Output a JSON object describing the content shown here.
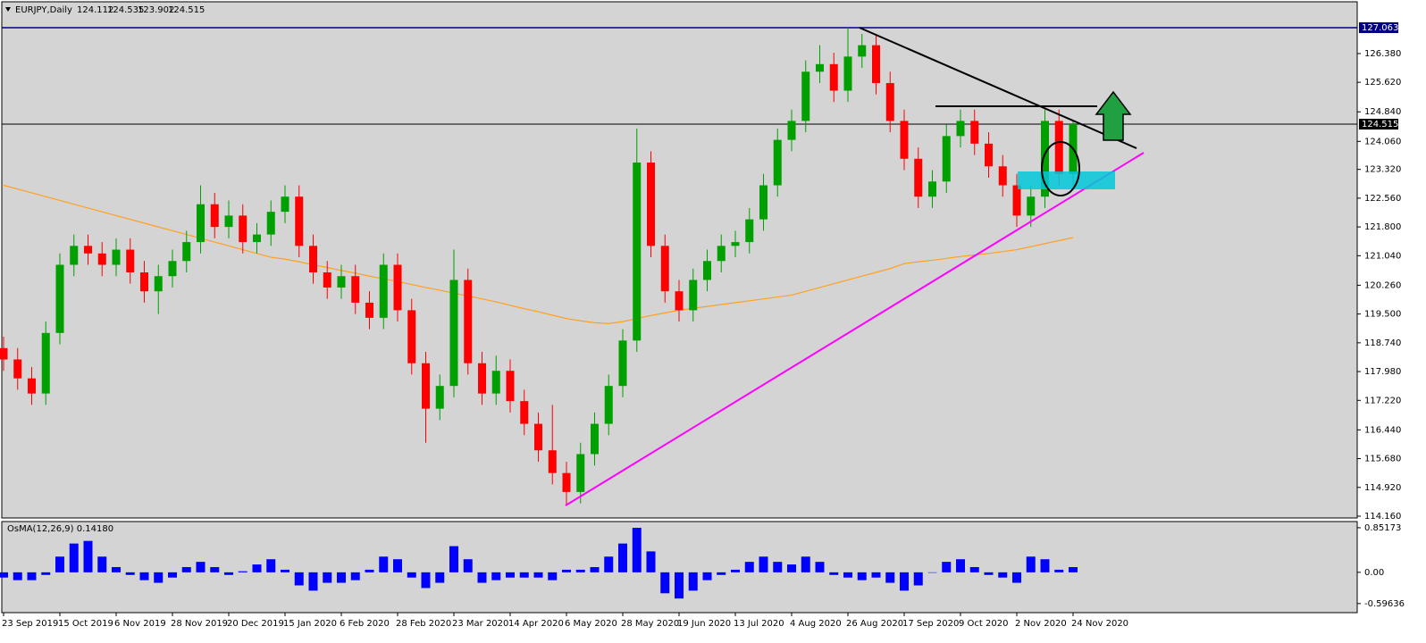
{
  "chart_data": {
    "type": "candlestick",
    "title": "EURJPY,Daily",
    "header_values": [
      124.112,
      124.535,
      123.902,
      124.515
    ],
    "categories": [
      "23 Sep 2019",
      null,
      null,
      null,
      "15 Oct 2019",
      null,
      null,
      null,
      "6 Nov 2019",
      null,
      null,
      null,
      "28 Nov 2019",
      null,
      null,
      null,
      "20 Dec 2019",
      null,
      null,
      null,
      "15 Jan 2020",
      null,
      null,
      null,
      "6 Feb 2020",
      null,
      null,
      null,
      "28 Feb 2020",
      null,
      null,
      null,
      "23 Mar 2020",
      null,
      null,
      null,
      "14 Apr 2020",
      null,
      null,
      null,
      "6 May 2020",
      null,
      null,
      null,
      "28 May 2020",
      null,
      null,
      null,
      "19 Jun 2020",
      null,
      null,
      null,
      "13 Jul 2020",
      null,
      null,
      null,
      "4 Aug 2020",
      null,
      null,
      null,
      "26 Aug 2020",
      null,
      null,
      null,
      "17 Sep 2020",
      null,
      null,
      null,
      "9 Oct 2020",
      null,
      null,
      null,
      "2 Nov 2020",
      null,
      null,
      null,
      "24 Nov 2020"
    ],
    "open": [
      118.6,
      118.3,
      117.8,
      117.4,
      119.0,
      120.8,
      121.3,
      121.1,
      120.8,
      121.2,
      120.6,
      120.1,
      120.5,
      120.9,
      121.4,
      122.4,
      121.8,
      122.1,
      121.4,
      121.6,
      122.2,
      122.6,
      121.3,
      120.6,
      120.2,
      120.5,
      119.8,
      119.4,
      120.8,
      119.6,
      118.2,
      117.0,
      117.6,
      120.4,
      118.2,
      117.4,
      118.0,
      117.2,
      116.6,
      115.9,
      115.3,
      114.8,
      115.8,
      116.6,
      117.6,
      118.8,
      123.5,
      121.3,
      120.1,
      119.6,
      120.4,
      120.9,
      121.3,
      121.4,
      122.0,
      122.9,
      124.1,
      124.6,
      125.9,
      126.1,
      125.4,
      126.3,
      126.6,
      125.6,
      124.6,
      123.6,
      122.6,
      123.0,
      124.2,
      124.6,
      124.0,
      123.4,
      122.9,
      122.1,
      122.6,
      124.6,
      123.2
    ],
    "high": [
      118.9,
      118.6,
      118.1,
      119.3,
      121.1,
      121.6,
      121.6,
      121.4,
      121.5,
      121.5,
      120.9,
      120.8,
      121.2,
      121.7,
      122.9,
      122.7,
      122.5,
      122.4,
      121.9,
      122.5,
      122.9,
      122.9,
      121.6,
      120.9,
      120.8,
      120.8,
      120.1,
      121.1,
      121.1,
      119.9,
      118.5,
      117.9,
      121.2,
      120.7,
      118.5,
      118.4,
      118.3,
      117.5,
      116.9,
      117.1,
      115.6,
      116.1,
      116.9,
      117.9,
      119.1,
      124.4,
      123.8,
      121.6,
      120.4,
      120.7,
      121.2,
      121.6,
      121.7,
      122.3,
      123.2,
      124.4,
      124.9,
      126.2,
      126.6,
      126.4,
      127.063,
      126.9,
      126.9,
      125.9,
      124.9,
      123.9,
      123.3,
      124.5,
      124.9,
      124.9,
      124.3,
      123.7,
      123.2,
      122.9,
      124.9,
      124.9,
      124.6
    ],
    "low": [
      118.0,
      117.5,
      117.1,
      117.1,
      118.7,
      120.5,
      120.8,
      120.5,
      120.5,
      120.3,
      119.8,
      119.5,
      120.2,
      120.6,
      121.1,
      121.5,
      121.5,
      121.1,
      121.1,
      121.3,
      121.9,
      121.0,
      120.3,
      119.9,
      119.9,
      119.5,
      119.1,
      119.1,
      119.3,
      117.9,
      116.1,
      116.7,
      117.3,
      117.9,
      117.1,
      117.1,
      116.9,
      116.3,
      115.6,
      115.0,
      114.43,
      114.5,
      115.5,
      116.3,
      117.3,
      118.5,
      121.0,
      119.8,
      119.3,
      119.3,
      120.1,
      120.6,
      121.0,
      121.1,
      121.7,
      122.6,
      123.8,
      124.3,
      125.6,
      125.1,
      125.1,
      126.0,
      125.3,
      124.3,
      123.3,
      122.3,
      122.3,
      122.7,
      123.9,
      123.7,
      123.1,
      122.6,
      121.8,
      121.8,
      122.3,
      122.9,
      122.9
    ],
    "close": [
      118.3,
      117.8,
      117.4,
      119.0,
      120.8,
      121.3,
      121.1,
      120.8,
      121.2,
      120.6,
      120.1,
      120.5,
      120.9,
      121.4,
      122.4,
      121.8,
      122.1,
      121.4,
      121.6,
      122.2,
      122.6,
      121.3,
      120.6,
      120.2,
      120.5,
      119.8,
      119.4,
      120.8,
      119.6,
      118.2,
      117.0,
      117.6,
      120.4,
      118.2,
      117.4,
      118.0,
      117.2,
      116.6,
      115.9,
      115.3,
      114.8,
      115.8,
      116.6,
      117.6,
      118.8,
      123.5,
      121.3,
      120.1,
      119.6,
      120.4,
      120.9,
      121.3,
      121.4,
      122.0,
      122.9,
      124.1,
      124.6,
      125.9,
      126.1,
      125.4,
      126.3,
      126.6,
      125.6,
      124.6,
      123.6,
      122.6,
      123.0,
      124.2,
      124.6,
      124.0,
      123.4,
      122.9,
      122.1,
      122.6,
      124.6,
      123.2,
      124.515
    ],
    "up_color": "#00a000",
    "down_color": "#ff0000",
    "moving_average": {
      "color": "#ffa020",
      "values": [
        122.9,
        122.8,
        122.7,
        122.6,
        122.5,
        122.4,
        122.3,
        122.2,
        122.1,
        122.0,
        121.9,
        121.8,
        121.7,
        121.6,
        121.5,
        121.4,
        121.3,
        121.2,
        121.1,
        121.0,
        120.95,
        120.88,
        120.8,
        120.73,
        120.65,
        120.58,
        120.5,
        120.43,
        120.36,
        120.28,
        120.2,
        120.13,
        120.05,
        119.98,
        119.9,
        119.82,
        119.73,
        119.64,
        119.56,
        119.47,
        119.38,
        119.32,
        119.27,
        119.25,
        119.3,
        119.38,
        119.46,
        119.53,
        119.6,
        119.65,
        119.7,
        119.75,
        119.8,
        119.85,
        119.9,
        119.95,
        120.0,
        120.1,
        120.2,
        120.3,
        120.4,
        120.5,
        120.6,
        120.7,
        120.83,
        120.88,
        120.92,
        120.97,
        121.02,
        121.06,
        121.1,
        121.15,
        121.2,
        121.28,
        121.36,
        121.44,
        121.52
      ]
    },
    "price_lines": [
      127.063,
      124.515
    ],
    "ylim": [
      114.113,
      127.747
    ],
    "yticks": [
      {
        "value": 126.38,
        "label": "126.380"
      },
      {
        "value": 125.62,
        "label": "125.620"
      },
      {
        "value": 124.84,
        "label": "124.840"
      },
      {
        "value": 124.06,
        "label": "124.060"
      },
      {
        "value": 123.32,
        "label": "123.320"
      },
      {
        "value": 122.56,
        "label": "122.560"
      },
      {
        "value": 121.8,
        "label": "121.800"
      },
      {
        "value": 121.04,
        "label": "121.040"
      },
      {
        "value": 120.26,
        "label": "120.260"
      },
      {
        "value": 119.5,
        "label": "119.500"
      },
      {
        "value": 118.74,
        "label": "118.740"
      },
      {
        "value": 117.98,
        "label": "117.980"
      },
      {
        "value": 117.22,
        "label": "117.220"
      },
      {
        "value": 116.44,
        "label": "116.440"
      },
      {
        "value": 115.68,
        "label": "115.680"
      },
      {
        "value": 114.92,
        "label": "114.920"
      },
      {
        "value": 114.16,
        "label": "114.160"
      }
    ],
    "indicator": {
      "title": "OsMA(12,26,9) 0.14180",
      "color": "#0000ff",
      "values": [
        -0.1,
        -0.15,
        -0.15,
        -0.05,
        0.3,
        0.55,
        0.6,
        0.3,
        0.1,
        -0.05,
        -0.15,
        -0.2,
        -0.1,
        0.1,
        0.2,
        0.1,
        -0.05,
        0.02,
        0.15,
        0.25,
        0.05,
        -0.25,
        -0.35,
        -0.2,
        -0.2,
        -0.15,
        0.05,
        0.3,
        0.25,
        -0.1,
        -0.3,
        -0.2,
        0.5,
        0.25,
        -0.2,
        -0.15,
        -0.1,
        -0.1,
        -0.1,
        -0.15,
        0.05,
        0.05,
        0.1,
        0.3,
        0.55,
        0.85,
        0.4,
        -0.4,
        -0.5,
        -0.35,
        -0.15,
        -0.05,
        0.05,
        0.2,
        0.3,
        0.2,
        0.15,
        0.3,
        0.2,
        -0.05,
        -0.1,
        -0.15,
        -0.1,
        -0.2,
        -0.35,
        -0.25,
        0,
        0.2,
        0.25,
        0.1,
        -0.05,
        -0.1,
        -0.2,
        0.3,
        0.25,
        0.05,
        0.1
      ],
      "ylim": [
        -0.77,
        0.97
      ],
      "yticks": [
        0.85173,
        {
          "value": 0,
          "label": "0.00"
        },
        -0.59636
      ]
    }
  }
}
